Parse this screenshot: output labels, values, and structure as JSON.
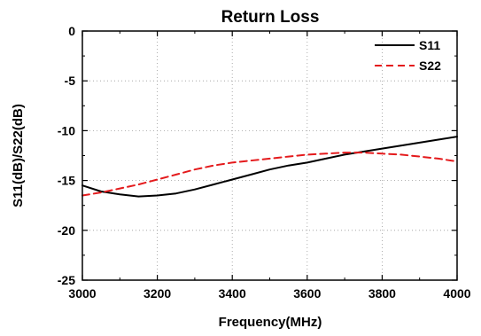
{
  "chart_data": {
    "type": "line",
    "title": "Return Loss",
    "xlabel": "Frequency(MHz)",
    "ylabel": "S11(dB)/S22(dB)",
    "xlim": [
      3000,
      4000
    ],
    "ylim": [
      -25,
      0
    ],
    "xticks": [
      3000,
      3200,
      3400,
      3600,
      3800,
      4000
    ],
    "yticks": [
      0,
      -5,
      -10,
      -15,
      -20,
      -25
    ],
    "grid": true,
    "legend_position": "top-right",
    "series": [
      {
        "name": "S11",
        "color": "#000000",
        "line_style": "solid",
        "x": [
          3000,
          3050,
          3100,
          3150,
          3200,
          3250,
          3300,
          3350,
          3400,
          3450,
          3500,
          3550,
          3600,
          3650,
          3700,
          3750,
          3800,
          3850,
          3900,
          3950,
          4000
        ],
        "y": [
          -15.5,
          -16.1,
          -16.4,
          -16.6,
          -16.5,
          -16.3,
          -15.9,
          -15.4,
          -14.9,
          -14.4,
          -13.9,
          -13.5,
          -13.2,
          -12.8,
          -12.4,
          -12.1,
          -11.8,
          -11.5,
          -11.2,
          -10.9,
          -10.6
        ]
      },
      {
        "name": "S22",
        "color": "#e41a1c",
        "line_style": "dashed",
        "x": [
          3000,
          3050,
          3100,
          3150,
          3200,
          3250,
          3300,
          3350,
          3400,
          3450,
          3500,
          3550,
          3600,
          3650,
          3700,
          3750,
          3800,
          3850,
          3900,
          3950,
          4000
        ],
        "y": [
          -16.5,
          -16.2,
          -15.8,
          -15.4,
          -14.9,
          -14.4,
          -13.9,
          -13.5,
          -13.2,
          -13.0,
          -12.8,
          -12.6,
          -12.4,
          -12.3,
          -12.2,
          -12.2,
          -12.3,
          -12.4,
          -12.6,
          -12.8,
          -13.1
        ]
      }
    ]
  }
}
